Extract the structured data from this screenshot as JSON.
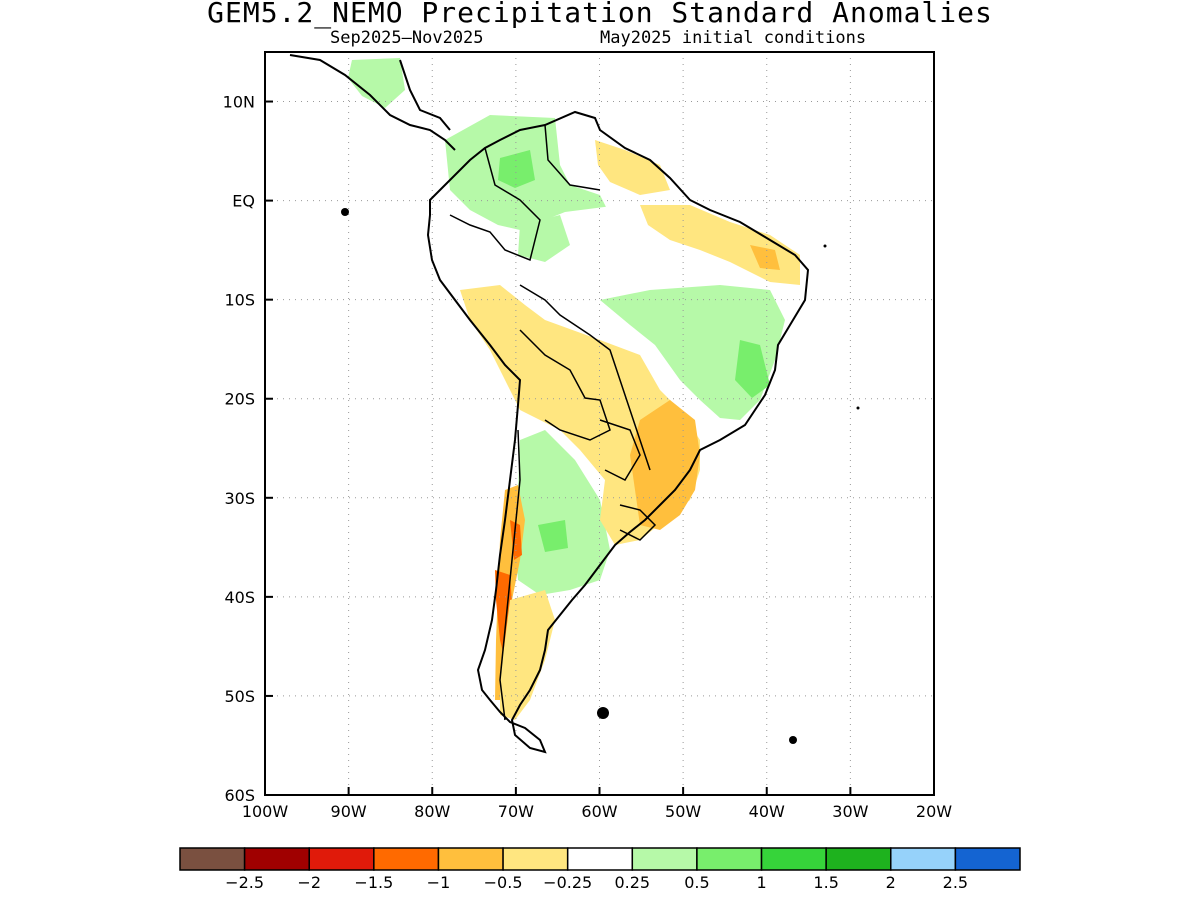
{
  "title": "GEM5.2_NEMO Precipitation Standard Anomalies",
  "subtitle_left": "Sep2025–Nov2025",
  "subtitle_right": "May2025 initial conditions",
  "map": {
    "lon_ticks": [
      "100W",
      "90W",
      "80W",
      "70W",
      "60W",
      "50W",
      "40W",
      "30W",
      "20W"
    ],
    "lat_ticks": [
      "10N",
      "EQ",
      "10S",
      "20S",
      "30S",
      "40S",
      "50S",
      "60S"
    ],
    "lon_range": [
      -100,
      -20
    ],
    "lat_range": [
      -60,
      15
    ],
    "gridlines": true,
    "regions": [
      {
        "name": "central-america-wet",
        "category": "0.5"
      },
      {
        "name": "colombia-venezuela-wet",
        "category": "0.5"
      },
      {
        "name": "colombia-core-wet",
        "category": "1"
      },
      {
        "name": "amazon-wet",
        "category": "0.25"
      },
      {
        "name": "amazon-core-wet",
        "category": "0.5"
      },
      {
        "name": "east-brazil-wet",
        "category": "0.5"
      },
      {
        "name": "east-brazil-core-wet",
        "category": "1"
      },
      {
        "name": "guiana-dry",
        "category": "-0.5"
      },
      {
        "name": "northeast-brazil-dry",
        "category": "-0.5"
      },
      {
        "name": "northeast-brazil-core-dry",
        "category": "-1"
      },
      {
        "name": "peru-bolivia-dry",
        "category": "-0.5"
      },
      {
        "name": "central-brazil-dry",
        "category": "-0.5"
      },
      {
        "name": "south-brazil-dry",
        "category": "-1"
      },
      {
        "name": "argentina-wet",
        "category": "0.5"
      },
      {
        "name": "argentina-core-wet",
        "category": "1"
      },
      {
        "name": "chile-coast-dry",
        "category": "-1"
      },
      {
        "name": "chile-core-dry",
        "category": "-1.5"
      },
      {
        "name": "patagonia-dry",
        "category": "-0.5"
      }
    ]
  },
  "legend": {
    "colors": [
      "#7a5040",
      "#a00000",
      "#e01a0a",
      "#ff6a00",
      "#ffbf3d",
      "#ffe680",
      "#ffffff",
      "#b6f9a8",
      "#78ee6c",
      "#36d43a",
      "#1eb21e",
      "#96d2fa",
      "#1464d2"
    ],
    "labels": [
      "−2.5",
      "−2",
      "−1.5",
      "−1",
      "−0.5",
      "−0.25",
      "0.25",
      "0.5",
      "1",
      "1.5",
      "2",
      "2.5"
    ]
  }
}
